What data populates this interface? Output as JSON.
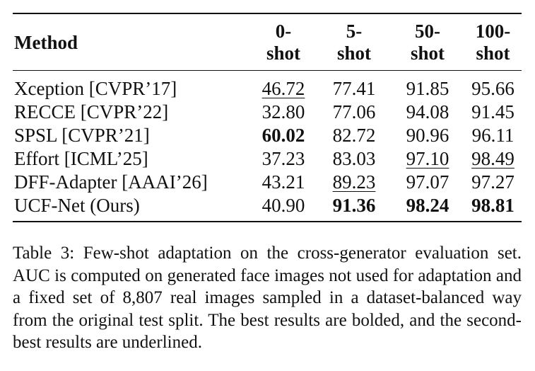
{
  "table": {
    "headers": {
      "method": "Method",
      "shots": [
        {
          "line1": "0-",
          "line2": "shot"
        },
        {
          "line1": "5-",
          "line2": "shot"
        },
        {
          "line1": "50-",
          "line2": "shot"
        },
        {
          "line1": "100-",
          "line2": "shot"
        }
      ]
    },
    "rows": [
      {
        "method": "Xception [CVPR’17]",
        "values": [
          "46.72",
          "77.41",
          "91.85",
          "95.66"
        ]
      },
      {
        "method": "RECCE [CVPR’22]",
        "values": [
          "32.80",
          "77.06",
          "94.08",
          "91.45"
        ]
      },
      {
        "method": "SPSL [CVPR’21]",
        "values": [
          "60.02",
          "82.72",
          "90.96",
          "96.11"
        ]
      },
      {
        "method": "Effort [ICML’25]",
        "values": [
          "37.23",
          "83.03",
          "97.10",
          "98.49"
        ]
      },
      {
        "method": "DFF-Adapter [AAAI’26]",
        "values": [
          "43.21",
          "89.23",
          "97.07",
          "97.27"
        ]
      },
      {
        "method": "UCF-Net (Ours)",
        "values": [
          "40.90",
          "91.36",
          "98.24",
          "98.81"
        ]
      }
    ]
  },
  "caption": "Table 3: Few-shot adaptation on the cross-generator evaluation set. AUC is computed on generated face images not used for adaptation and a fixed set of 8,807 real images sampled in a dataset-balanced way from the original test split. The best results are bolded, and the second-best results are underlined."
}
